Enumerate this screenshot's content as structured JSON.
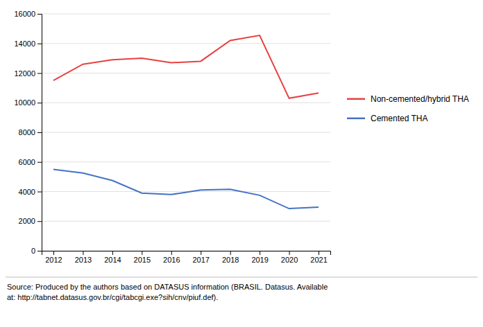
{
  "chart_data": {
    "type": "line",
    "x": [
      2012,
      2013,
      2014,
      2015,
      2016,
      2017,
      2018,
      2019,
      2020,
      2021
    ],
    "series": [
      {
        "name": "Non-cemented/hybrid THA",
        "color": "#e84040",
        "values": [
          11500,
          12600,
          12900,
          13000,
          12700,
          12800,
          14200,
          14550,
          10300,
          10650
        ]
      },
      {
        "name": "Cemented THA",
        "color": "#4472c4",
        "values": [
          5500,
          5250,
          4750,
          3900,
          3800,
          4100,
          4150,
          3750,
          2850,
          2950
        ]
      }
    ],
    "xlim": [
      2011.6,
      2021.4
    ],
    "xticks": [
      2012,
      2013,
      2014,
      2015,
      2016,
      2017,
      2018,
      2019,
      2020,
      2021
    ],
    "ylim": [
      0,
      16000
    ],
    "yticks": [
      0,
      2000,
      4000,
      6000,
      8000,
      10000,
      12000,
      14000,
      16000
    ],
    "grid": true,
    "legend": "right",
    "annotations": [
      "Source: Produced by the authors based on DATASUS information (BRASIL. Datasus. Available\nat: http://tabnet.datasus.gov.br/cgi/tabcgi.exe?sih/cnv/piuf.def)."
    ]
  }
}
